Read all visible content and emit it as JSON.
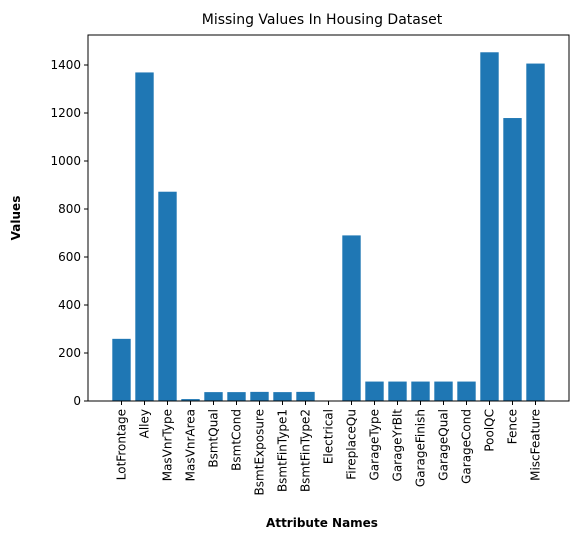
{
  "chart_data": {
    "type": "bar",
    "title": "Missing Values In Housing Dataset",
    "xlabel": "Attribute Names",
    "ylabel": "Values",
    "categories": [
      "LotFrontage",
      "Alley",
      "MasVnrType",
      "MasVnrArea",
      "BsmtQual",
      "BsmtCond",
      "BsmtExposure",
      "BsmtFinType1",
      "BsmtFinType2",
      "Electrical",
      "FireplaceQu",
      "GarageType",
      "GarageYrBlt",
      "GarageFinish",
      "GarageQual",
      "GarageCond",
      "PoolQC",
      "Fence",
      "MiscFeature"
    ],
    "values": [
      259,
      1369,
      872,
      8,
      37,
      37,
      38,
      37,
      38,
      1,
      690,
      81,
      81,
      81,
      81,
      81,
      1453,
      1179,
      1406
    ],
    "ylim": [
      0,
      1525
    ],
    "yticks": [
      0,
      200,
      400,
      600,
      800,
      1000,
      1200,
      1400
    ],
    "bar_color": "#1f77b4",
    "grid": false,
    "legend": "none"
  }
}
